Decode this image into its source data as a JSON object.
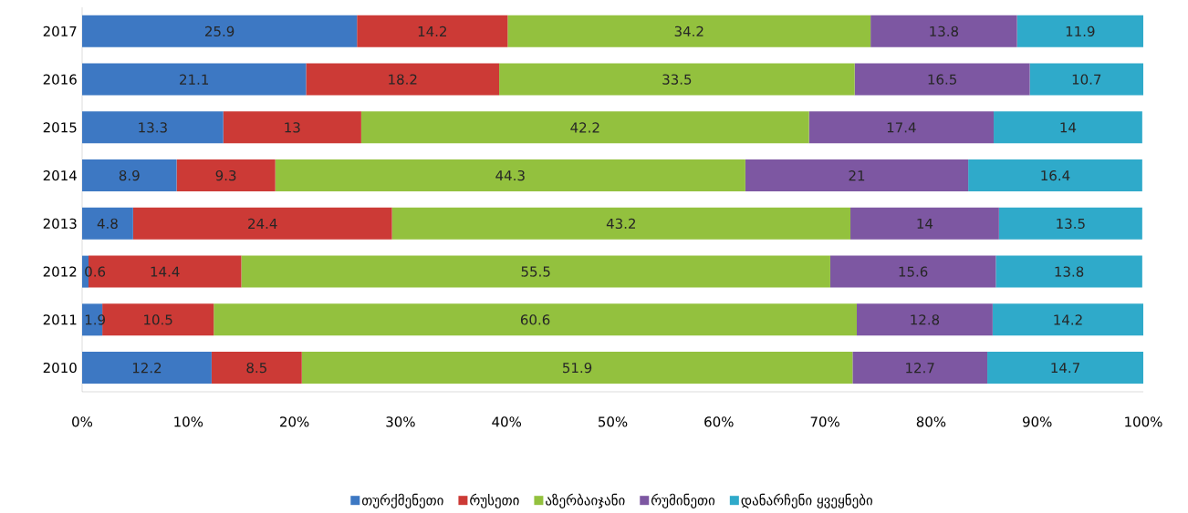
{
  "chart_data": {
    "type": "bar",
    "orientation": "horizontal",
    "stacked": true,
    "legend": "bottom",
    "grid": false,
    "categories": [
      "2017",
      "2016",
      "2015",
      "2014",
      "2013",
      "2012",
      "2011",
      "2010"
    ],
    "xlim": [
      0,
      100
    ],
    "xticks": [
      {
        "value": 0,
        "label": "0%"
      },
      {
        "value": 10,
        "label": "10%"
      },
      {
        "value": 20,
        "label": "20%"
      },
      {
        "value": 30,
        "label": "30%"
      },
      {
        "value": 40,
        "label": "40%"
      },
      {
        "value": 50,
        "label": "50%"
      },
      {
        "value": 60,
        "label": "60%"
      },
      {
        "value": 70,
        "label": "70%"
      },
      {
        "value": 80,
        "label": "80%"
      },
      {
        "value": 90,
        "label": "90%"
      },
      {
        "value": 100,
        "label": "100%"
      }
    ],
    "series": [
      {
        "name": "თურქმენეთი",
        "color": "#3d78c3",
        "values": [
          25.9,
          21.1,
          13.3,
          8.9,
          4.8,
          0.6,
          1.9,
          12.2
        ],
        "value_labels": [
          "25.9",
          "21.1",
          "13.3",
          "8.9",
          "4.8",
          "0.6",
          "1.9",
          "12.2"
        ]
      },
      {
        "name": "რუსეთი",
        "color": "#cc3a36",
        "values": [
          14.2,
          18.2,
          13,
          9.3,
          24.4,
          14.4,
          10.5,
          8.5
        ],
        "value_labels": [
          "14.2",
          "18.2",
          "13",
          "9.3",
          "24.4",
          "14.4",
          "10.5",
          "8.5"
        ]
      },
      {
        "name": "აზერბაიჯანი",
        "color": "#93c13e",
        "values": [
          34.2,
          33.5,
          42.2,
          44.3,
          43.2,
          55.5,
          60.6,
          51.9
        ],
        "value_labels": [
          "34.2",
          "33.5",
          "42.2",
          "44.3",
          "43.2",
          "55.5",
          "60.6",
          "51.9"
        ]
      },
      {
        "name": "რუმინეთი",
        "color": "#7d57a2",
        "values": [
          13.8,
          16.5,
          17.4,
          21,
          14,
          15.6,
          12.8,
          12.7
        ],
        "value_labels": [
          "13.8",
          "16.5",
          "17.4",
          "21",
          "14",
          "15.6",
          "12.8",
          "12.7"
        ]
      },
      {
        "name": "დანარჩენი ყვეყნები",
        "color": "#2faaca",
        "values": [
          11.9,
          10.7,
          14,
          16.4,
          13.5,
          13.8,
          14.2,
          14.7
        ],
        "value_labels": [
          "11.9",
          "10.7",
          "14",
          "16.4",
          "13.5",
          "13.8",
          "14.2",
          "14.7"
        ]
      }
    ]
  }
}
